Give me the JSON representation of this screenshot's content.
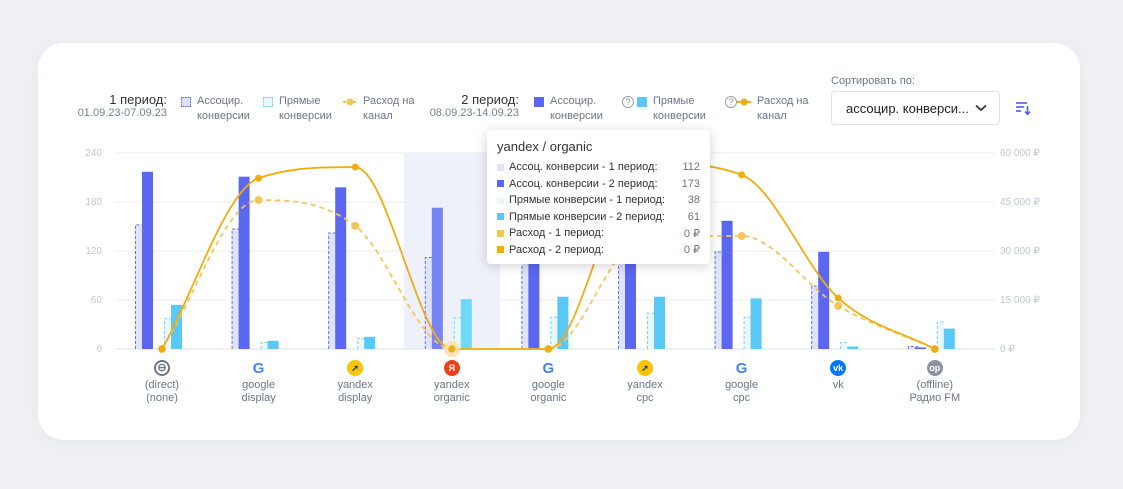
{
  "legend": {
    "period1": {
      "title": "1 период:",
      "dates": "01.09.23-07.09.23",
      "assoc": "Ассоцир. конверсии",
      "direct": "Прямые конверсии",
      "spend": "Расход на канал"
    },
    "period2": {
      "title": "2 период:",
      "dates": "08.09.23-14.09.23",
      "assoc": "Ассоцир. конверсии",
      "direct": "Прямые конверсии",
      "spend": "Расход на канал"
    },
    "help": "?"
  },
  "sort": {
    "label": "Сортировать по:",
    "value": "ассоцир. конверси...",
    "icon": "sort-icon"
  },
  "colors": {
    "assoc1": "#dfe3fb",
    "assoc2": "#5b67f0",
    "direct1": "#e9f8fd",
    "direct2": "#5ac8f5",
    "spend1": "#f5c55a",
    "spend2": "#f0ad10",
    "highlight": "#eef1fa"
  },
  "tooltip": {
    "title": "yandex / organic",
    "rows": [
      {
        "label": "Ассоц. конверсии - 1 период:",
        "value": "112",
        "color": "#dfe3fb"
      },
      {
        "label": "Ассоц. конверсии - 2 период:",
        "value": "173",
        "color": "#5b67f0"
      },
      {
        "label": "Прямые конверсии - 1 период:",
        "value": "38",
        "color": "#e9f8fd"
      },
      {
        "label": "Прямые конверсии - 2 период:",
        "value": "61",
        "color": "#5ac8f5"
      },
      {
        "label": "Расход - 1 период:",
        "value": "0 ₽",
        "color": "#f5c55a"
      },
      {
        "label": "Расход - 2 период:",
        "value": "0 ₽",
        "color": "#f0ad10"
      }
    ]
  },
  "chart_data": {
    "type": "bar+line",
    "categories": [
      {
        "l1": "(direct)",
        "l2": "(none)",
        "icon": "direct-icon"
      },
      {
        "l1": "google",
        "l2": "display",
        "icon": "google-icon"
      },
      {
        "l1": "yandex",
        "l2": "display",
        "icon": "yandex-direct-icon"
      },
      {
        "l1": "yandex",
        "l2": "organic",
        "icon": "yandex-icon"
      },
      {
        "l1": "google",
        "l2": "organic",
        "icon": "google-icon"
      },
      {
        "l1": "yandex",
        "l2": "cpc",
        "icon": "yandex-direct-icon"
      },
      {
        "l1": "google",
        "l2": "cpc",
        "icon": "google-icon"
      },
      {
        "l1": "vk",
        "l2": "",
        "icon": "vk-icon"
      },
      {
        "l1": "(offline)",
        "l2": "Радио FM",
        "icon": "offline-icon",
        "badge": "op"
      }
    ],
    "highlighted": "yandex / organic",
    "y_left": {
      "ticks": [
        "0",
        "60",
        "120",
        "180",
        "240"
      ],
      "range": [
        0,
        240
      ]
    },
    "y_right": {
      "ticks": [
        "0 ₽",
        "15 000 ₽",
        "30 000 ₽",
        "45 000 ₽",
        "60 000 ₽"
      ],
      "range": [
        0,
        60000
      ]
    },
    "series": [
      {
        "name": "Ассоц. конверсии - 1 период",
        "kind": "bar",
        "values": [
          152,
          147,
          142,
          112,
          125,
          120,
          119,
          77,
          3
        ]
      },
      {
        "name": "Ассоц. конверсии - 2 период",
        "kind": "bar",
        "values": [
          217,
          211,
          198,
          173,
          165,
          175,
          157,
          119,
          2
        ]
      },
      {
        "name": "Прямые конверсии - 1 период",
        "kind": "bar",
        "values": [
          37,
          8,
          13,
          38,
          39,
          44,
          39,
          8,
          33
        ]
      },
      {
        "name": "Прямые конверсии - 2 период",
        "kind": "bar",
        "values": [
          54,
          10,
          15,
          61,
          64,
          64,
          62,
          3,
          25
        ]
      },
      {
        "name": "Расход - 1 период",
        "kind": "line",
        "axis": "right",
        "values": [
          0,
          45600,
          37700,
          0,
          0,
          34500,
          34600,
          13200,
          0
        ]
      },
      {
        "name": "Расход - 2 период",
        "kind": "line",
        "axis": "right",
        "values": [
          0,
          52300,
          55700,
          0,
          0,
          57000,
          53300,
          15600,
          0
        ]
      }
    ]
  }
}
